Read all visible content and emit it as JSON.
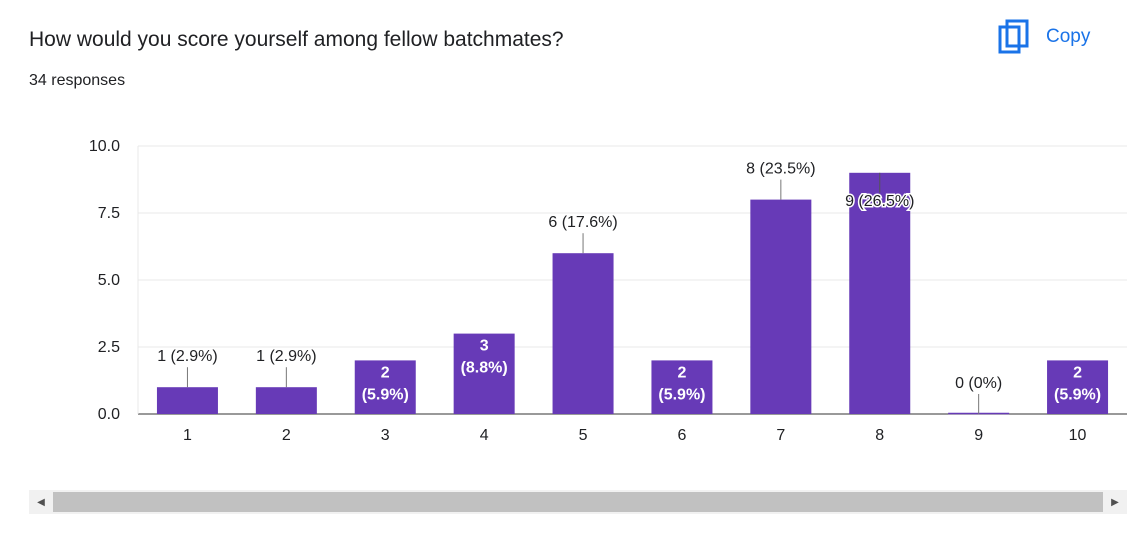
{
  "header": {
    "question": "How would you score yourself among fellow batchmates?",
    "responses": "34 responses",
    "copy_label": "Copy"
  },
  "colors": {
    "bar": "#673ab7",
    "accent": "#1a73e8",
    "grid": "#e8e8e8",
    "text": "#202124"
  },
  "icons": {
    "copy": "copy-icon",
    "scroll_left": "chevron-left-icon",
    "scroll_right": "chevron-right-icon"
  },
  "chart_data": {
    "type": "bar",
    "title": "",
    "xlabel": "",
    "ylabel": "",
    "categories": [
      "1",
      "2",
      "3",
      "4",
      "5",
      "6",
      "7",
      "8",
      "9",
      "10"
    ],
    "values": [
      1,
      1,
      2,
      3,
      6,
      2,
      8,
      9,
      0,
      2
    ],
    "labels": [
      "1 (2.9%)",
      "1 (2.9%)",
      "2 (5.9%)",
      "3 (8.8%)",
      "6 (17.6%)",
      "2 (5.9%)",
      "8 (23.5%)",
      "9 (26.5%)",
      "0 (0%)",
      "2 (5.9%)"
    ],
    "ylim": [
      0,
      10
    ],
    "yticks": [
      "0.0",
      "2.5",
      "5.0",
      "7.5",
      "10.0"
    ],
    "grid": true,
    "legend": "none"
  }
}
